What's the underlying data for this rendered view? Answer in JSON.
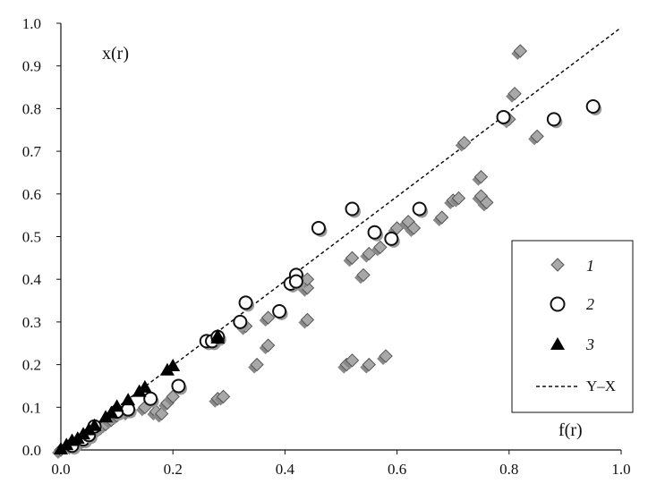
{
  "chart_data": {
    "type": "scatter",
    "xlabel": "f(r)",
    "ylabel": "x(r)",
    "xlim": [
      0.0,
      1.0
    ],
    "ylim": [
      0.0,
      1.0
    ],
    "x_ticks": [
      "0.0",
      "0.2",
      "0.4",
      "0.6",
      "0.8",
      "1.0"
    ],
    "y_ticks": [
      "0.0",
      "0.1",
      "0.2",
      "0.3",
      "0.4",
      "0.5",
      "0.6",
      "0.7",
      "0.8",
      "0.9",
      "1.0"
    ],
    "grid": false,
    "legend_position": "lower-right",
    "reference_line": {
      "name": "Y–X",
      "style": "dashed",
      "from": [
        0,
        0
      ],
      "to": [
        1.0,
        0.99
      ]
    },
    "series": [
      {
        "name": "1",
        "marker": "diamond",
        "color": "#a8a8a8",
        "points": [
          [
            0.0,
            0.0
          ],
          [
            0.02,
            0.01
          ],
          [
            0.04,
            0.02
          ],
          [
            0.05,
            0.03
          ],
          [
            0.06,
            0.04
          ],
          [
            0.07,
            0.05
          ],
          [
            0.08,
            0.06
          ],
          [
            0.09,
            0.07
          ],
          [
            0.1,
            0.08
          ],
          [
            0.12,
            0.09
          ],
          [
            0.15,
            0.1
          ],
          [
            0.17,
            0.09
          ],
          [
            0.18,
            0.085
          ],
          [
            0.19,
            0.11
          ],
          [
            0.2,
            0.125
          ],
          [
            0.28,
            0.12
          ],
          [
            0.29,
            0.125
          ],
          [
            0.33,
            0.29
          ],
          [
            0.35,
            0.2
          ],
          [
            0.37,
            0.31
          ],
          [
            0.37,
            0.245
          ],
          [
            0.44,
            0.38
          ],
          [
            0.44,
            0.4
          ],
          [
            0.44,
            0.305
          ],
          [
            0.51,
            0.2
          ],
          [
            0.52,
            0.45
          ],
          [
            0.52,
            0.21
          ],
          [
            0.54,
            0.41
          ],
          [
            0.55,
            0.46
          ],
          [
            0.55,
            0.2
          ],
          [
            0.57,
            0.475
          ],
          [
            0.58,
            0.22
          ],
          [
            0.6,
            0.52
          ],
          [
            0.62,
            0.535
          ],
          [
            0.63,
            0.52
          ],
          [
            0.68,
            0.545
          ],
          [
            0.7,
            0.585
          ],
          [
            0.71,
            0.59
          ],
          [
            0.72,
            0.72
          ],
          [
            0.75,
            0.64
          ],
          [
            0.75,
            0.595
          ],
          [
            0.76,
            0.58
          ],
          [
            0.8,
            0.775
          ],
          [
            0.81,
            0.835
          ],
          [
            0.82,
            0.935
          ],
          [
            0.85,
            0.735
          ]
        ]
      },
      {
        "name": "2",
        "marker": "circle",
        "color": "#ffffff",
        "points": [
          [
            0.02,
            0.01
          ],
          [
            0.04,
            0.025
          ],
          [
            0.05,
            0.035
          ],
          [
            0.06,
            0.055
          ],
          [
            0.1,
            0.09
          ],
          [
            0.12,
            0.095
          ],
          [
            0.16,
            0.12
          ],
          [
            0.21,
            0.15
          ],
          [
            0.26,
            0.255
          ],
          [
            0.27,
            0.255
          ],
          [
            0.28,
            0.265
          ],
          [
            0.32,
            0.3
          ],
          [
            0.33,
            0.345
          ],
          [
            0.39,
            0.325
          ],
          [
            0.41,
            0.39
          ],
          [
            0.42,
            0.41
          ],
          [
            0.42,
            0.395
          ],
          [
            0.46,
            0.52
          ],
          [
            0.52,
            0.565
          ],
          [
            0.56,
            0.51
          ],
          [
            0.59,
            0.495
          ],
          [
            0.64,
            0.565
          ],
          [
            0.79,
            0.78
          ],
          [
            0.88,
            0.775
          ],
          [
            0.95,
            0.805
          ]
        ]
      },
      {
        "name": "3",
        "marker": "triangle",
        "color": "#000000",
        "points": [
          [
            0.0,
            0.0
          ],
          [
            0.01,
            0.01
          ],
          [
            0.02,
            0.02
          ],
          [
            0.03,
            0.025
          ],
          [
            0.04,
            0.035
          ],
          [
            0.05,
            0.045
          ],
          [
            0.06,
            0.055
          ],
          [
            0.08,
            0.075
          ],
          [
            0.09,
            0.085
          ],
          [
            0.1,
            0.1
          ],
          [
            0.12,
            0.115
          ],
          [
            0.14,
            0.135
          ],
          [
            0.15,
            0.145
          ],
          [
            0.19,
            0.185
          ],
          [
            0.2,
            0.195
          ],
          [
            0.28,
            0.265
          ],
          [
            0.28,
            0.26
          ]
        ]
      }
    ]
  }
}
